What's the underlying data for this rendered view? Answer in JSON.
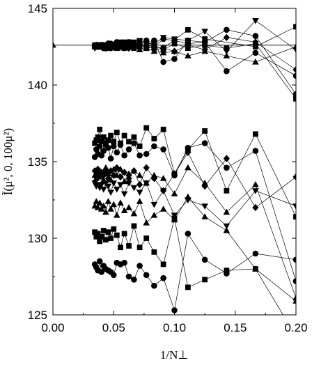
{
  "chart_data": {
    "type": "scatter",
    "xlabel": "1/N⊥",
    "ylabel": "Ĩ(μ², 0, 100μ²)",
    "xlim": [
      0.0,
      0.2
    ],
    "ylim": [
      125,
      145
    ],
    "x_ticks": [
      "0.00",
      "0.05",
      "0.10",
      "0.15",
      "0.20"
    ],
    "y_ticks": [
      "125",
      "130",
      "135",
      "140",
      "145"
    ],
    "x_tick_values": [
      0.0,
      0.05,
      0.1,
      0.15,
      0.2
    ],
    "y_tick_values": [
      125,
      130,
      135,
      140,
      145
    ],
    "grid": false,
    "legend": "none",
    "colors": {
      "marks": "#000000",
      "background": "#ffffff"
    },
    "reference_line": {
      "y": 142.6,
      "marker": "triangle-up",
      "x": 0.0
    },
    "series": [
      {
        "marker": "square",
        "x": [
          0.2,
          0.1667,
          0.125,
          0.1111,
          0.0909,
          0.0833,
          0.0769,
          0.0714,
          0.0667,
          0.0625,
          0.0588,
          0.0556,
          0.0526,
          0.05,
          0.0476,
          0.0455,
          0.0435,
          0.0417,
          0.04,
          0.0385,
          0.037,
          0.0357,
          0.0345
        ],
        "y": [
          143.8,
          142.5,
          143.0,
          143.6,
          142.4,
          142.5,
          142.4,
          142.8,
          142.5,
          142.6,
          142.7,
          142.5,
          142.6,
          142.6,
          142.5,
          142.6,
          142.4,
          142.6,
          142.5,
          142.6,
          142.5,
          142.6,
          142.5
        ]
      },
      {
        "marker": "triangle-down",
        "x": [
          0.2,
          0.1667,
          0.1429,
          0.125,
          0.1111,
          0.1,
          0.0909,
          0.0833,
          0.0769,
          0.0714,
          0.0667,
          0.0625,
          0.0588,
          0.0556,
          0.0526,
          0.05,
          0.0476,
          0.0455,
          0.0435,
          0.0417,
          0.04,
          0.0385,
          0.037,
          0.0357,
          0.0345
        ],
        "y": [
          142.3,
          144.2,
          142.2,
          143.5,
          142.9,
          143.0,
          143.1,
          142.7,
          142.7,
          142.9,
          142.8,
          142.8,
          142.8,
          142.8,
          142.7,
          142.6,
          142.5,
          142.5,
          142.6,
          142.6,
          142.6,
          142.5,
          142.5,
          142.5,
          142.4
        ]
      },
      {
        "marker": "triangle-up",
        "x": [
          0.2,
          0.1667,
          0.1429,
          0.125,
          0.1111,
          0.1,
          0.0909,
          0.0833,
          0.0769,
          0.0714,
          0.0667,
          0.0625,
          0.0588,
          0.0556,
          0.0526,
          0.05,
          0.0476,
          0.0455,
          0.0435,
          0.0417,
          0.04,
          0.0385,
          0.037,
          0.0357,
          0.0345
        ],
        "y": [
          142.5,
          141.5,
          141.9,
          142.2,
          141.9,
          142.2,
          142.1,
          142.2,
          142.4,
          142.3,
          142.6,
          142.5,
          142.4,
          142.5,
          142.4,
          142.5,
          142.6,
          142.4,
          142.5,
          142.6,
          142.5,
          142.6,
          142.6,
          142.5,
          142.5
        ]
      },
      {
        "marker": "diamond",
        "x": [
          0.2,
          0.1667,
          0.1429,
          0.125,
          0.1111,
          0.1,
          0.0909,
          0.0833,
          0.0769,
          0.0714,
          0.0667,
          0.0625,
          0.0588,
          0.0556,
          0.0526,
          0.05,
          0.0476,
          0.0455,
          0.0435,
          0.0417,
          0.04,
          0.0385,
          0.037,
          0.0357,
          0.0345
        ],
        "y": [
          141.0,
          142.8,
          143.1,
          142.3,
          142.6,
          142.2,
          142.4,
          142.3,
          142.6,
          142.4,
          142.5,
          142.4,
          142.7,
          142.5,
          142.6,
          142.5,
          142.5,
          142.7,
          142.4,
          142.5,
          142.6,
          142.5,
          142.5,
          142.6,
          142.5
        ]
      },
      {
        "marker": "circle",
        "x": [
          0.2,
          0.1667,
          0.1429,
          0.125,
          0.1111,
          0.1,
          0.0909,
          0.0833,
          0.0769,
          0.0714,
          0.0667,
          0.0625,
          0.0588,
          0.0556,
          0.0526,
          0.05,
          0.0476,
          0.0455,
          0.0435,
          0.0417,
          0.04,
          0.0385,
          0.037,
          0.0357,
          0.0345
        ],
        "y": [
          140.6,
          142.1,
          140.9,
          142.8,
          142.9,
          141.7,
          141.5,
          142.9,
          142.6,
          142.6,
          142.7,
          142.8,
          142.4,
          142.6,
          142.8,
          142.6,
          142.4,
          142.7,
          142.6,
          142.4,
          142.6,
          142.5,
          142.6,
          142.5,
          142.5
        ]
      },
      {
        "marker": "circle",
        "x": [
          0.2,
          0.1667,
          0.1429,
          0.125,
          0.1111,
          0.1,
          0.0909,
          0.0833,
          0.0769,
          0.0714,
          0.0667,
          0.0625,
          0.0588,
          0.0556,
          0.0526,
          0.05,
          0.0476,
          0.0455,
          0.0435,
          0.0417,
          0.04,
          0.0385,
          0.037,
          0.0357,
          0.0345
        ],
        "y": [
          139.4,
          143.2,
          143.6,
          142.8,
          142.7,
          142.9,
          143.0,
          142.5,
          142.9,
          142.6,
          142.5,
          142.7,
          142.6,
          142.7,
          142.5,
          142.6,
          142.7,
          142.5,
          142.6,
          142.5,
          142.5,
          142.6,
          142.5,
          142.5,
          142.6
        ]
      },
      {
        "marker": "square",
        "x": [
          0.2,
          0.1667,
          0.1429,
          0.125,
          0.1111,
          0.1,
          0.0909,
          0.0833,
          0.0769,
          0.0714,
          0.0667,
          0.0625,
          0.0588,
          0.0556,
          0.0526,
          0.05,
          0.0476,
          0.0455,
          0.0435,
          0.0417,
          0.04,
          0.0385,
          0.037,
          0.0357,
          0.0345
        ],
        "y": [
          139.1,
          142.7,
          142.4,
          142.6,
          142.4,
          142.7,
          142.3,
          142.6,
          142.5,
          142.7,
          142.4,
          142.6,
          142.5,
          142.6,
          142.4,
          142.6,
          142.5,
          142.5,
          142.5,
          142.6,
          142.6,
          142.5,
          142.5,
          142.6,
          142.6
        ]
      },
      {
        "marker": "square",
        "x": [
          0.2,
          0.1667,
          0.1429,
          0.125,
          0.1111,
          0.1,
          0.0909,
          0.0833,
          0.0769,
          0.0714,
          0.0667,
          0.0625,
          0.0588,
          0.0556,
          0.0526,
          0.05,
          0.0476,
          0.0455,
          0.0435,
          0.0417,
          0.04,
          0.0385,
          0.037,
          0.0357,
          0.0345
        ],
        "y": [
          131.4,
          136.8,
          133.1,
          137.0,
          135.8,
          134.2,
          137.1,
          136.5,
          137.2,
          136.0,
          136.6,
          136.3,
          136.7,
          136.2,
          136.9,
          136.3,
          136.7,
          136.4,
          136.1,
          136.6,
          136.3,
          137.1,
          136.6,
          136.4,
          136.2
        ]
      },
      {
        "marker": "circle",
        "x": [
          0.2,
          0.1667,
          0.1429,
          0.125,
          0.1111,
          0.1,
          0.0909,
          0.0833,
          0.0769,
          0.0714,
          0.0667,
          0.0625,
          0.0588,
          0.0556,
          0.0526,
          0.05,
          0.0476,
          0.0455,
          0.0435,
          0.0417,
          0.04,
          0.0385,
          0.037,
          0.0357,
          0.0345
        ],
        "y": [
          127.2,
          135.7,
          134.6,
          136.2,
          135.9,
          134.1,
          135.8,
          136.0,
          135.5,
          135.4,
          136.2,
          135.8,
          135.4,
          136.1,
          135.6,
          136.0,
          135.2,
          135.9,
          136.2,
          135.7,
          135.4,
          136.0,
          135.5,
          135.8,
          135.3
        ]
      },
      {
        "marker": "triangle-up",
        "x": [
          0.2,
          0.1667,
          0.1429,
          0.125,
          0.1111,
          0.1,
          0.0909,
          0.0833,
          0.0769,
          0.0714,
          0.0667,
          0.0625,
          0.0588,
          0.0556,
          0.0526,
          0.05,
          0.0476,
          0.0455,
          0.0435,
          0.0417,
          0.04,
          0.0385,
          0.037,
          0.0357,
          0.0345
        ],
        "y": [
          126.1,
          133.5,
          131.7,
          133.6,
          134.6,
          132.9,
          133.9,
          134.1,
          133.6,
          134.1,
          134.4,
          134.2,
          133.7,
          134.5,
          134.1,
          134.5,
          133.8,
          134.2,
          134.6,
          133.8,
          134.2,
          134.0,
          134.3,
          133.9,
          134.1
        ]
      },
      {
        "marker": "diamond",
        "x": [
          0.2,
          0.1667,
          0.1429,
          0.125,
          0.1111,
          0.1,
          0.0909,
          0.0833,
          0.0769,
          0.0714,
          0.0667,
          0.0625,
          0.0588,
          0.0556,
          0.0526,
          0.05,
          0.0476,
          0.0455,
          0.0435,
          0.0417,
          0.04,
          0.0385,
          0.037,
          0.0357,
          0.0345
        ],
        "y": [
          134.0,
          132.0,
          135.2,
          133.4,
          135.6,
          134.2,
          133.1,
          133.9,
          134.6,
          133.5,
          134.4,
          133.9,
          134.3,
          134.0,
          134.6,
          134.1,
          134.4,
          133.9,
          134.4,
          134.1,
          134.3,
          134.2,
          134.5,
          134.0,
          134.4
        ]
      },
      {
        "marker": "triangle-down",
        "x": [
          0.2,
          0.1667,
          0.1429,
          0.125,
          0.1111,
          0.1,
          0.0909,
          0.0833,
          0.0769,
          0.0714,
          0.0667,
          0.0625,
          0.0588,
          0.0556,
          0.0526,
          0.05,
          0.0476,
          0.0455,
          0.0435,
          0.0417,
          0.04,
          0.0385,
          0.037,
          0.0357,
          0.0345
        ],
        "y": [
          132.1,
          133.1,
          130.8,
          132.1,
          132.5,
          131.5,
          133.1,
          132.2,
          133.6,
          133.0,
          133.3,
          133.6,
          132.9,
          133.5,
          133.2,
          133.6,
          133.0,
          133.4,
          133.6,
          133.2,
          133.5,
          133.3,
          133.5,
          133.4,
          133.6
        ]
      },
      {
        "marker": "triangle-up",
        "x": [
          0.2,
          0.1667,
          0.1429,
          0.125,
          0.1111,
          0.1,
          0.0909,
          0.0833,
          0.0769,
          0.0714,
          0.0667,
          0.0625,
          0.0588,
          0.0556,
          0.0526,
          0.05,
          0.0476,
          0.0455,
          0.0435,
          0.0417,
          0.04,
          0.0385,
          0.037,
          0.0357,
          0.0345
        ],
        "y": [
          125.9,
          128.0,
          130.5,
          131.4,
          132.7,
          131.2,
          131.9,
          131.5,
          131.0,
          132.4,
          131.6,
          132.0,
          131.8,
          132.3,
          131.5,
          132.2,
          131.9,
          132.4,
          131.7,
          132.1,
          131.9,
          132.3,
          132.0,
          132.4,
          132.1
        ]
      },
      {
        "marker": "square",
        "x": [
          0.2,
          0.1667,
          0.1429,
          0.125,
          0.1111,
          0.1,
          0.0909,
          0.0833,
          0.0769,
          0.0714,
          0.0667,
          0.0625,
          0.0588,
          0.0556,
          0.0526,
          0.05,
          0.0476,
          0.0455,
          0.0435,
          0.0417,
          0.04,
          0.0385,
          0.037,
          0.0357,
          0.0345
        ],
        "y": [
          123.6,
          128.0,
          127.9,
          127.3,
          126.8,
          131.3,
          128.3,
          129.1,
          130.0,
          129.4,
          130.8,
          129.5,
          130.3,
          129.4,
          130.2,
          130.6,
          130.0,
          130.4,
          129.9,
          130.5,
          130.1,
          129.8,
          130.3,
          130.1,
          130.4
        ]
      },
      {
        "marker": "circle",
        "x": [
          0.2,
          0.1667,
          0.1429,
          0.125,
          0.1111,
          0.1,
          0.0909,
          0.0833,
          0.0769,
          0.0714,
          0.0667,
          0.0625,
          0.0588,
          0.0556,
          0.0526,
          0.05,
          0.0476,
          0.0455,
          0.0435,
          0.0417,
          0.04,
          0.0385,
          0.037,
          0.0357,
          0.0345
        ],
        "y": [
          128.6,
          129.0,
          127.7,
          128.6,
          130.3,
          125.3,
          127.4,
          126.9,
          127.6,
          128.2,
          127.3,
          127.5,
          128.4,
          128.3,
          128.4,
          127.6,
          127.8,
          127.9,
          128.0,
          128.2,
          127.8,
          128.5,
          127.9,
          128.1,
          128.3
        ]
      }
    ]
  }
}
